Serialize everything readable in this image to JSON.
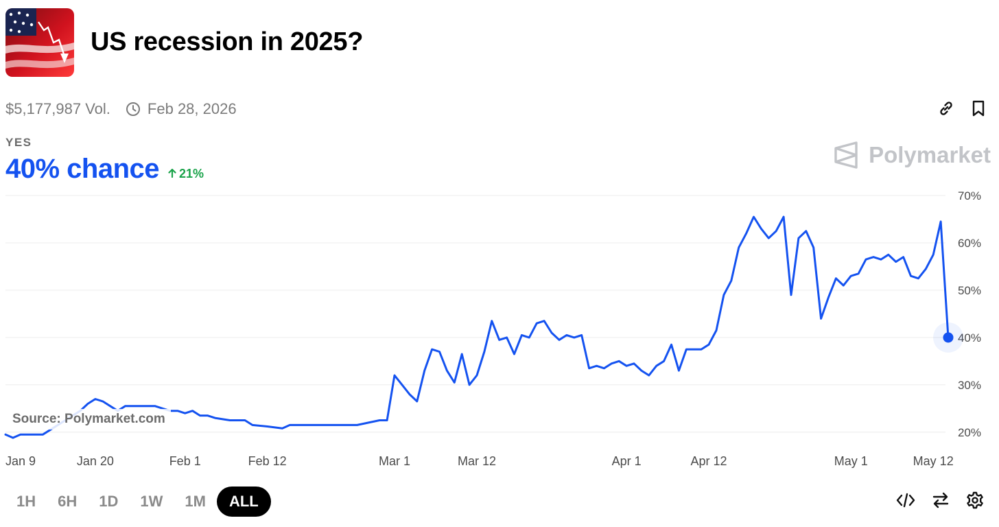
{
  "market": {
    "title": "US recession in 2025?",
    "volume": "$5,177,987 Vol.",
    "end_date": "Feb 28, 2026",
    "outcome_label": "YES",
    "chance_text": "40% chance",
    "change_text": "21%",
    "brand": "Polymarket",
    "source": "Source: Polymarket.com"
  },
  "colors": {
    "line": "#1452f0",
    "positive": "#1aa34a",
    "grid": "#ececec",
    "brand": "#c2c4c8"
  },
  "icons": {
    "link": "link-icon",
    "bookmark": "bookmark-icon",
    "clock": "clock-icon",
    "embed": "code-icon",
    "swap": "swap-icon",
    "settings": "gear-icon",
    "change": "arrow-up-icon"
  },
  "time_ranges": [
    {
      "label": "1H",
      "active": false
    },
    {
      "label": "6H",
      "active": false
    },
    {
      "label": "1D",
      "active": false
    },
    {
      "label": "1W",
      "active": false
    },
    {
      "label": "1M",
      "active": false
    },
    {
      "label": "ALL",
      "active": true
    }
  ],
  "chart_data": {
    "type": "line",
    "grid": true,
    "y_ticks": [
      "20%",
      "30%",
      "40%",
      "50%",
      "60%",
      "70%"
    ],
    "y_tick_values": [
      20,
      30,
      40,
      50,
      60,
      70
    ],
    "ylim": [
      17.5,
      70
    ],
    "x_range": [
      "2025-01-08",
      "2025-05-14"
    ],
    "x_ticks": [
      {
        "label": "Jan 9",
        "date": "2025-01-09"
      },
      {
        "label": "Jan 20",
        "date": "2025-01-20"
      },
      {
        "label": "Feb 1",
        "date": "2025-02-01"
      },
      {
        "label": "Feb 12",
        "date": "2025-02-12"
      },
      {
        "label": "Mar 1",
        "date": "2025-03-01"
      },
      {
        "label": "Mar 12",
        "date": "2025-03-12"
      },
      {
        "label": "Apr 1",
        "date": "2025-04-01"
      },
      {
        "label": "Apr 12",
        "date": "2025-04-12"
      },
      {
        "label": "May 1",
        "date": "2025-05-01"
      },
      {
        "label": "May 12",
        "date": "2025-05-12"
      }
    ],
    "series": [
      {
        "points": [
          [
            "2025-01-08",
            19.5
          ],
          [
            "2025-01-09",
            18.8
          ],
          [
            "2025-01-10",
            19.5
          ],
          [
            "2025-01-13",
            19.5
          ],
          [
            "2025-01-14",
            20.5
          ],
          [
            "2025-01-16",
            22.5
          ],
          [
            "2025-01-18",
            24.5
          ],
          [
            "2025-01-19",
            26
          ],
          [
            "2025-01-20",
            27
          ],
          [
            "2025-01-21",
            26.5
          ],
          [
            "2025-01-22",
            25.5
          ],
          [
            "2025-01-23",
            24.5
          ],
          [
            "2025-01-24",
            25.5
          ],
          [
            "2025-01-28",
            25.5
          ],
          [
            "2025-01-29",
            25
          ],
          [
            "2025-01-30",
            24.5
          ],
          [
            "2025-01-31",
            24.5
          ],
          [
            "2025-02-01",
            24
          ],
          [
            "2025-02-02",
            24.5
          ],
          [
            "2025-02-03",
            23.5
          ],
          [
            "2025-02-04",
            23.5
          ],
          [
            "2025-02-05",
            23
          ],
          [
            "2025-02-07",
            22.5
          ],
          [
            "2025-02-09",
            22.5
          ],
          [
            "2025-02-10",
            21.5
          ],
          [
            "2025-02-12",
            21.2
          ],
          [
            "2025-02-13",
            21
          ],
          [
            "2025-02-14",
            20.8
          ],
          [
            "2025-02-15",
            21.5
          ],
          [
            "2025-02-16",
            21.5
          ],
          [
            "2025-02-17",
            21.5
          ],
          [
            "2025-02-18",
            21.5
          ],
          [
            "2025-02-20",
            21.5
          ],
          [
            "2025-02-24",
            21.5
          ],
          [
            "2025-02-27",
            22.5
          ],
          [
            "2025-02-28",
            22.5
          ],
          [
            "2025-03-01",
            32
          ],
          [
            "2025-03-02",
            30
          ],
          [
            "2025-03-03",
            28
          ],
          [
            "2025-03-04",
            26.5
          ],
          [
            "2025-03-05",
            33
          ],
          [
            "2025-03-06",
            37.5
          ],
          [
            "2025-03-07",
            37
          ],
          [
            "2025-03-08",
            33
          ],
          [
            "2025-03-09",
            30.5
          ],
          [
            "2025-03-10",
            36.5
          ],
          [
            "2025-03-11",
            30
          ],
          [
            "2025-03-12",
            32
          ],
          [
            "2025-03-13",
            37
          ],
          [
            "2025-03-14",
            43.5
          ],
          [
            "2025-03-15",
            39.5
          ],
          [
            "2025-03-16",
            40
          ],
          [
            "2025-03-17",
            36.5
          ],
          [
            "2025-03-18",
            40.5
          ],
          [
            "2025-03-19",
            40
          ],
          [
            "2025-03-20",
            43
          ],
          [
            "2025-03-21",
            43.5
          ],
          [
            "2025-03-22",
            41
          ],
          [
            "2025-03-23",
            39.5
          ],
          [
            "2025-03-24",
            40.5
          ],
          [
            "2025-03-25",
            40
          ],
          [
            "2025-03-26",
            40.5
          ],
          [
            "2025-03-27",
            33.5
          ],
          [
            "2025-03-28",
            34
          ],
          [
            "2025-03-29",
            33.5
          ],
          [
            "2025-03-30",
            34.5
          ],
          [
            "2025-03-31",
            35
          ],
          [
            "2025-04-01",
            34
          ],
          [
            "2025-04-02",
            34.5
          ],
          [
            "2025-04-03",
            33
          ],
          [
            "2025-04-04",
            32
          ],
          [
            "2025-04-05",
            34
          ],
          [
            "2025-04-06",
            35
          ],
          [
            "2025-04-07",
            38.5
          ],
          [
            "2025-04-08",
            33
          ],
          [
            "2025-04-09",
            37.5
          ],
          [
            "2025-04-11",
            37.5
          ],
          [
            "2025-04-12",
            38.5
          ],
          [
            "2025-04-13",
            41.5
          ],
          [
            "2025-04-14",
            49
          ],
          [
            "2025-04-15",
            52
          ],
          [
            "2025-04-16",
            59
          ],
          [
            "2025-04-17",
            62
          ],
          [
            "2025-04-18",
            65.5
          ],
          [
            "2025-04-19",
            63
          ],
          [
            "2025-04-20",
            61
          ],
          [
            "2025-04-21",
            62.5
          ],
          [
            "2025-04-22",
            65.5
          ],
          [
            "2025-04-23",
            49
          ],
          [
            "2025-04-24",
            61
          ],
          [
            "2025-04-25",
            62.5
          ],
          [
            "2025-04-26",
            59
          ],
          [
            "2025-04-27",
            44
          ],
          [
            "2025-04-28",
            48.5
          ],
          [
            "2025-04-29",
            52.5
          ],
          [
            "2025-04-30",
            51
          ],
          [
            "2025-05-01",
            53
          ],
          [
            "2025-05-02",
            53.5
          ],
          [
            "2025-05-03",
            56.5
          ],
          [
            "2025-05-04",
            57
          ],
          [
            "2025-05-05",
            56.5
          ],
          [
            "2025-05-06",
            57.5
          ],
          [
            "2025-05-07",
            56
          ],
          [
            "2025-05-08",
            57
          ],
          [
            "2025-05-09",
            53
          ],
          [
            "2025-05-10",
            52.5
          ],
          [
            "2025-05-11",
            54.5
          ],
          [
            "2025-05-12",
            57.5
          ],
          [
            "2025-05-13",
            64.5
          ],
          [
            "2025-05-14",
            40
          ]
        ]
      }
    ]
  }
}
